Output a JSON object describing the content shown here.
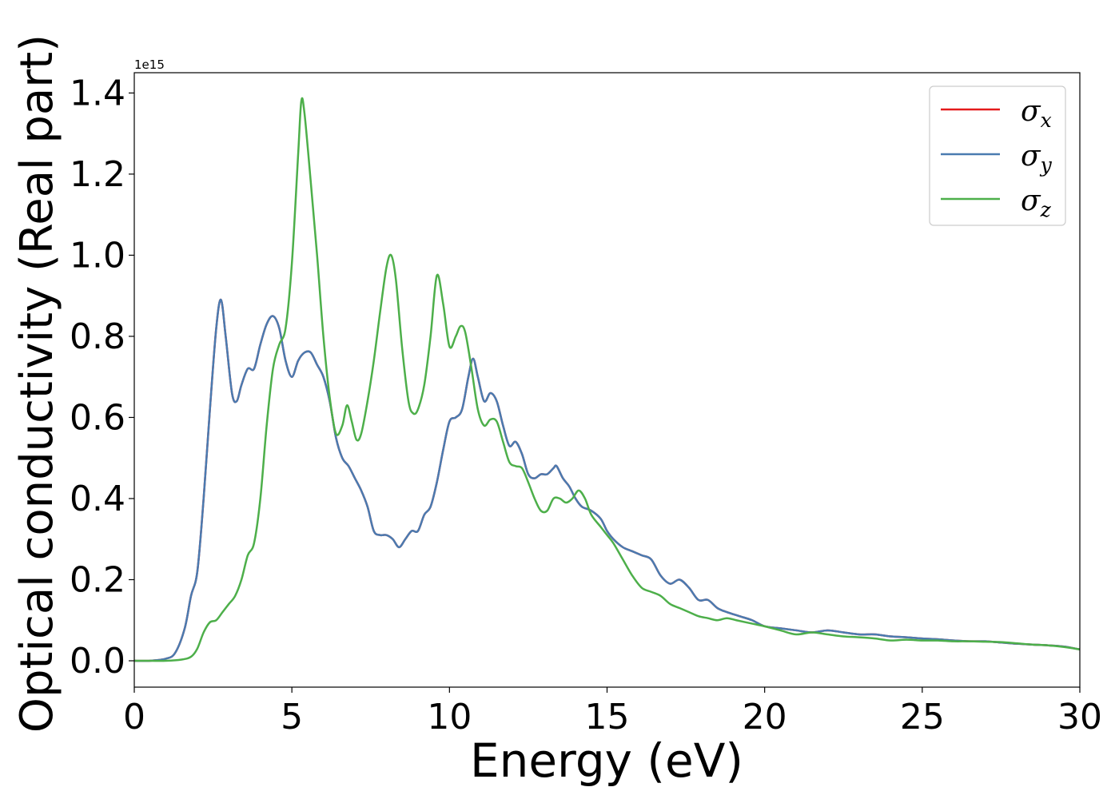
{
  "chart_data": {
    "type": "line",
    "xlabel": "Energy (eV)",
    "ylabel": "Optical conductivity (Real part)",
    "y_offset_label": "1e15",
    "y_multiplier": 1000000000000000.0,
    "xlim": [
      0,
      30
    ],
    "ylim": [
      -0.065,
      1.45
    ],
    "xticks": [
      0,
      5,
      10,
      15,
      20,
      25,
      30
    ],
    "xtick_labels": [
      "0",
      "5",
      "10",
      "15",
      "20",
      "25",
      "30"
    ],
    "yticks": [
      0.0,
      0.2,
      0.4,
      0.6,
      0.8,
      1.0,
      1.2,
      1.4
    ],
    "ytick_labels": [
      "0.0",
      "0.2",
      "0.4",
      "0.6",
      "0.8",
      "1.0",
      "1.2",
      "1.4"
    ],
    "grid": false,
    "legend_position": "top-right",
    "series": [
      {
        "name": "σx",
        "legend_symbol": "σ",
        "legend_sub": "x",
        "color": "#e41a1c",
        "x": [
          0,
          0.5,
          1.0,
          1.3,
          1.6,
          1.8,
          2.0,
          2.2,
          2.4,
          2.6,
          2.75,
          2.9,
          3.1,
          3.25,
          3.4,
          3.6,
          3.8,
          4.0,
          4.2,
          4.4,
          4.6,
          4.8,
          5.0,
          5.2,
          5.4,
          5.6,
          5.8,
          6.0,
          6.2,
          6.4,
          6.6,
          6.8,
          7.0,
          7.2,
          7.4,
          7.6,
          7.8,
          8.0,
          8.2,
          8.4,
          8.6,
          8.8,
          9.0,
          9.2,
          9.4,
          9.6,
          9.8,
          10.0,
          10.2,
          10.4,
          10.6,
          10.75,
          10.9,
          11.1,
          11.3,
          11.5,
          11.7,
          11.9,
          12.1,
          12.3,
          12.5,
          12.7,
          12.9,
          13.1,
          13.3,
          13.4,
          13.6,
          13.8,
          14.0,
          14.2,
          14.5,
          14.8,
          15.0,
          15.2,
          15.5,
          15.8,
          16.1,
          16.4,
          16.7,
          17.0,
          17.3,
          17.6,
          17.9,
          18.2,
          18.5,
          18.8,
          19.2,
          19.6,
          20.0,
          20.5,
          21.0,
          21.5,
          22.0,
          22.5,
          23.0,
          23.5,
          24.0,
          24.5,
          25.0,
          25.5,
          26.0,
          26.5,
          27.0,
          27.5,
          28.0,
          28.5,
          29.0,
          29.5,
          30.0
        ],
        "y": [
          0.0,
          0.0,
          0.005,
          0.02,
          0.08,
          0.16,
          0.22,
          0.4,
          0.62,
          0.82,
          0.89,
          0.8,
          0.66,
          0.64,
          0.68,
          0.72,
          0.72,
          0.78,
          0.83,
          0.85,
          0.82,
          0.74,
          0.7,
          0.74,
          0.76,
          0.76,
          0.73,
          0.7,
          0.64,
          0.55,
          0.5,
          0.48,
          0.45,
          0.42,
          0.38,
          0.32,
          0.31,
          0.31,
          0.3,
          0.28,
          0.3,
          0.32,
          0.32,
          0.36,
          0.38,
          0.44,
          0.52,
          0.59,
          0.6,
          0.62,
          0.7,
          0.745,
          0.7,
          0.64,
          0.66,
          0.64,
          0.58,
          0.53,
          0.54,
          0.51,
          0.46,
          0.45,
          0.46,
          0.46,
          0.475,
          0.48,
          0.45,
          0.43,
          0.4,
          0.38,
          0.37,
          0.35,
          0.32,
          0.3,
          0.28,
          0.27,
          0.26,
          0.25,
          0.21,
          0.19,
          0.2,
          0.18,
          0.15,
          0.15,
          0.13,
          0.12,
          0.11,
          0.1,
          0.085,
          0.08,
          0.075,
          0.07,
          0.075,
          0.07,
          0.065,
          0.065,
          0.06,
          0.058,
          0.055,
          0.053,
          0.05,
          0.048,
          0.048,
          0.045,
          0.042,
          0.04,
          0.038,
          0.035,
          0.028
        ]
      },
      {
        "name": "σy",
        "legend_symbol": "σ",
        "legend_sub": "y",
        "color": "#4a7bb0",
        "x": [
          0,
          0.5,
          1.0,
          1.3,
          1.6,
          1.8,
          2.0,
          2.2,
          2.4,
          2.6,
          2.75,
          2.9,
          3.1,
          3.25,
          3.4,
          3.6,
          3.8,
          4.0,
          4.2,
          4.4,
          4.6,
          4.8,
          5.0,
          5.2,
          5.4,
          5.6,
          5.8,
          6.0,
          6.2,
          6.4,
          6.6,
          6.8,
          7.0,
          7.2,
          7.4,
          7.6,
          7.8,
          8.0,
          8.2,
          8.4,
          8.6,
          8.8,
          9.0,
          9.2,
          9.4,
          9.6,
          9.8,
          10.0,
          10.2,
          10.4,
          10.6,
          10.75,
          10.9,
          11.1,
          11.3,
          11.5,
          11.7,
          11.9,
          12.1,
          12.3,
          12.5,
          12.7,
          12.9,
          13.1,
          13.3,
          13.4,
          13.6,
          13.8,
          14.0,
          14.2,
          14.5,
          14.8,
          15.0,
          15.2,
          15.5,
          15.8,
          16.1,
          16.4,
          16.7,
          17.0,
          17.3,
          17.6,
          17.9,
          18.2,
          18.5,
          18.8,
          19.2,
          19.6,
          20.0,
          20.5,
          21.0,
          21.5,
          22.0,
          22.5,
          23.0,
          23.5,
          24.0,
          24.5,
          25.0,
          25.5,
          26.0,
          26.5,
          27.0,
          27.5,
          28.0,
          28.5,
          29.0,
          29.5,
          30.0
        ],
        "y": [
          0.0,
          0.0,
          0.005,
          0.02,
          0.08,
          0.16,
          0.22,
          0.4,
          0.62,
          0.82,
          0.89,
          0.8,
          0.66,
          0.64,
          0.68,
          0.72,
          0.72,
          0.78,
          0.83,
          0.85,
          0.82,
          0.74,
          0.7,
          0.74,
          0.76,
          0.76,
          0.73,
          0.7,
          0.64,
          0.55,
          0.5,
          0.48,
          0.45,
          0.42,
          0.38,
          0.32,
          0.31,
          0.31,
          0.3,
          0.28,
          0.3,
          0.32,
          0.32,
          0.36,
          0.38,
          0.44,
          0.52,
          0.59,
          0.6,
          0.62,
          0.7,
          0.745,
          0.7,
          0.64,
          0.66,
          0.64,
          0.58,
          0.53,
          0.54,
          0.51,
          0.46,
          0.45,
          0.46,
          0.46,
          0.475,
          0.48,
          0.45,
          0.43,
          0.4,
          0.38,
          0.37,
          0.35,
          0.32,
          0.3,
          0.28,
          0.27,
          0.26,
          0.25,
          0.21,
          0.19,
          0.2,
          0.18,
          0.15,
          0.15,
          0.13,
          0.12,
          0.11,
          0.1,
          0.085,
          0.08,
          0.075,
          0.07,
          0.075,
          0.07,
          0.065,
          0.065,
          0.06,
          0.058,
          0.055,
          0.053,
          0.05,
          0.048,
          0.048,
          0.045,
          0.042,
          0.04,
          0.038,
          0.035,
          0.028
        ]
      },
      {
        "name": "σz",
        "legend_symbol": "σ",
        "legend_sub": "z",
        "color": "#4daf4a",
        "x": [
          0,
          0.5,
          1.0,
          1.5,
          1.8,
          2.0,
          2.2,
          2.4,
          2.6,
          2.8,
          3.0,
          3.2,
          3.4,
          3.6,
          3.8,
          4.0,
          4.2,
          4.4,
          4.6,
          4.8,
          5.0,
          5.2,
          5.3,
          5.4,
          5.6,
          5.8,
          6.0,
          6.2,
          6.4,
          6.6,
          6.75,
          6.9,
          7.05,
          7.2,
          7.4,
          7.6,
          7.8,
          8.0,
          8.15,
          8.3,
          8.5,
          8.7,
          8.85,
          9.0,
          9.2,
          9.4,
          9.6,
          9.8,
          10.0,
          10.2,
          10.35,
          10.5,
          10.7,
          10.9,
          11.1,
          11.3,
          11.5,
          11.7,
          11.9,
          12.1,
          12.3,
          12.5,
          12.7,
          12.9,
          13.1,
          13.3,
          13.5,
          13.7,
          13.9,
          14.1,
          14.3,
          14.5,
          14.8,
          15.0,
          15.2,
          15.5,
          15.8,
          16.1,
          16.4,
          16.7,
          17.0,
          17.3,
          17.6,
          17.9,
          18.2,
          18.5,
          18.8,
          19.1,
          19.4,
          19.7,
          20.0,
          20.5,
          21.0,
          21.5,
          22.0,
          22.5,
          23.0,
          23.5,
          24.0,
          24.5,
          25.0,
          25.5,
          26.0,
          26.5,
          27.0,
          27.5,
          28.0,
          28.5,
          29.0,
          29.5,
          30.0
        ],
        "y": [
          0.0,
          0.0,
          0.0,
          0.003,
          0.01,
          0.03,
          0.07,
          0.095,
          0.1,
          0.12,
          0.14,
          0.16,
          0.2,
          0.26,
          0.29,
          0.4,
          0.58,
          0.72,
          0.78,
          0.82,
          0.98,
          1.25,
          1.38,
          1.35,
          1.18,
          1.0,
          0.8,
          0.65,
          0.56,
          0.58,
          0.63,
          0.59,
          0.545,
          0.56,
          0.64,
          0.74,
          0.86,
          0.97,
          1.0,
          0.94,
          0.77,
          0.64,
          0.61,
          0.62,
          0.68,
          0.8,
          0.95,
          0.88,
          0.775,
          0.8,
          0.825,
          0.81,
          0.72,
          0.62,
          0.58,
          0.595,
          0.59,
          0.54,
          0.49,
          0.48,
          0.475,
          0.44,
          0.4,
          0.37,
          0.37,
          0.4,
          0.4,
          0.39,
          0.4,
          0.42,
          0.4,
          0.36,
          0.33,
          0.31,
          0.29,
          0.25,
          0.21,
          0.18,
          0.17,
          0.16,
          0.14,
          0.13,
          0.12,
          0.11,
          0.105,
          0.1,
          0.105,
          0.1,
          0.095,
          0.09,
          0.085,
          0.075,
          0.065,
          0.07,
          0.065,
          0.06,
          0.058,
          0.055,
          0.05,
          0.052,
          0.05,
          0.05,
          0.048,
          0.048,
          0.047,
          0.046,
          0.043,
          0.04,
          0.038,
          0.034,
          0.028
        ]
      }
    ]
  }
}
